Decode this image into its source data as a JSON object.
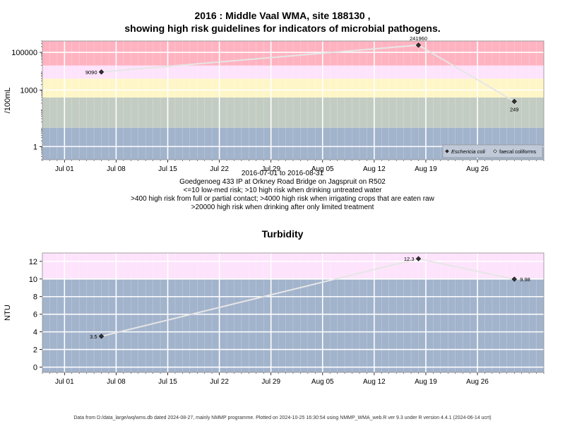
{
  "title_line1": "2016 : Middle Vaal WMA, site 188130 ,",
  "title_line2": "showing high risk guidelines for indicators of microbial pathogens.",
  "caption_lines": [
    "2016-07-01 to 2016-08-31",
    "Goedgenoeg 433 IP at Orkney Road Bridge on Jagspruit on R502",
    "<=10 low-med risk; >10 high risk when drinking untreated water",
    ">400 high risk from full or partial contact; >4000 high risk when irrigating crops that are eaten raw",
    ">20000 high risk when drinking after only limited treatment"
  ],
  "footer": "Data from D:/data_large/wq/wms.db dated 2024-08-27, mainly NMMP programme. Plotted on 2024-10-25 16:30:54 using NMMP_WMA_web.R ver 9.3 under R version 4.4.1 (2024-06-14 ucrt)",
  "colors": {
    "band_red": "#ffb3c1",
    "band_pink": "#fde3fb",
    "band_yellow": "#fff6c8",
    "band_green": "#c3ccc2",
    "band_blue": "#a2b3cc",
    "grid": "#ffffff",
    "line": "#e6e6e6",
    "point": "#333333"
  },
  "chart_data": [
    {
      "type": "line",
      "ylabel": "/100mL",
      "y_scale": "log",
      "x_tick_labels": [
        "Jul 01",
        "Jul 08",
        "Jul 15",
        "Jul 22",
        "Jul 29",
        "Aug 05",
        "Aug 12",
        "Aug 19",
        "Aug 26"
      ],
      "x_tick_dates": [
        "2016-07-01",
        "2016-07-08",
        "2016-07-15",
        "2016-07-22",
        "2016-07-29",
        "2016-08-05",
        "2016-08-12",
        "2016-08-19",
        "2016-08-26"
      ],
      "xlim": [
        "2016-06-28",
        "2016-09-04"
      ],
      "y_tick_labels": [
        "1",
        "1000",
        "100000"
      ],
      "y_ticks": [
        1,
        1000,
        100000
      ],
      "ylim": [
        0.2,
        400000
      ],
      "bands": [
        {
          "from": 0.2,
          "to": 10,
          "color": "band_blue"
        },
        {
          "from": 10,
          "to": 400,
          "color": "band_green"
        },
        {
          "from": 400,
          "to": 4000,
          "color": "band_yellow"
        },
        {
          "from": 4000,
          "to": 20000,
          "color": "band_pink"
        },
        {
          "from": 20000,
          "to": 400000,
          "color": "band_red"
        }
      ],
      "series": [
        {
          "name": "Eschericia coli",
          "marker": "filled-diamond",
          "points": [
            {
              "x": "2016-07-06",
              "y": 9090,
              "label": "9090"
            },
            {
              "x": "2016-08-18",
              "y": 241960,
              "label": "241960"
            },
            {
              "x": "2016-08-31",
              "y": 249,
              "label": "249"
            }
          ]
        },
        {
          "name": "faecal coliforms",
          "marker": "open-diamond",
          "points": []
        }
      ],
      "legend": {
        "position": "bottom-right",
        "items": [
          "Eschericia coli",
          "faecal coliforms"
        ]
      }
    },
    {
      "type": "line",
      "title": "Turbidity",
      "ylabel": "NTU",
      "x_tick_labels": [
        "Jul 01",
        "Jul 08",
        "Jul 15",
        "Jul 22",
        "Jul 29",
        "Aug 05",
        "Aug 12",
        "Aug 19",
        "Aug 26"
      ],
      "x_tick_dates": [
        "2016-07-01",
        "2016-07-08",
        "2016-07-15",
        "2016-07-22",
        "2016-07-29",
        "2016-08-05",
        "2016-08-12",
        "2016-08-19",
        "2016-08-26"
      ],
      "xlim": [
        "2016-06-28",
        "2016-09-04"
      ],
      "y_tick_labels": [
        "0",
        "2",
        "4",
        "6",
        "8",
        "10",
        "12"
      ],
      "y_ticks": [
        0,
        2,
        4,
        6,
        8,
        10,
        12
      ],
      "ylim": [
        -0.6,
        12.95
      ],
      "bands": [
        {
          "from": -0.6,
          "to": 10,
          "color": "band_blue"
        },
        {
          "from": 10,
          "to": 12.95,
          "color": "band_pink"
        }
      ],
      "series": [
        {
          "name": "Turbidity",
          "marker": "filled-diamond",
          "points": [
            {
              "x": "2016-07-06",
              "y": 3.5,
              "label": "3.5"
            },
            {
              "x": "2016-08-18",
              "y": 12.3,
              "label": "12.3"
            },
            {
              "x": "2016-08-31",
              "y": 9.98,
              "label": "9.98"
            }
          ]
        }
      ]
    }
  ]
}
